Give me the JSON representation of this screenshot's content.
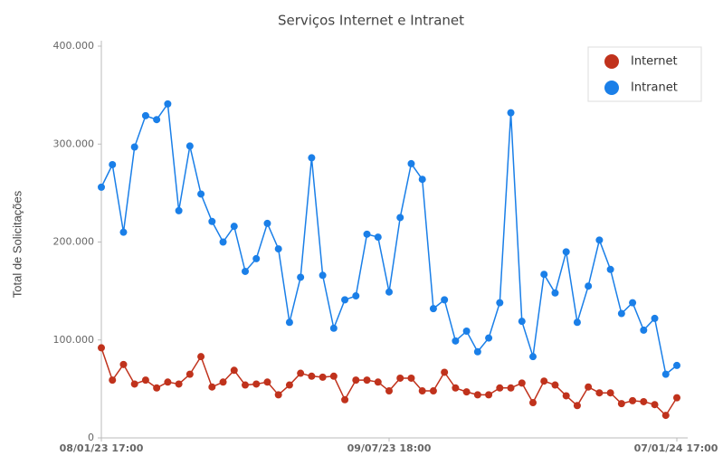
{
  "chart_data": {
    "type": "line",
    "title": "Serviços Internet e Intranet",
    "y_label": "Total de Solicitações",
    "categories": [
      "08/01/23 17:00",
      null,
      null,
      null,
      null,
      null,
      null,
      null,
      null,
      null,
      null,
      null,
      null,
      null,
      null,
      null,
      null,
      null,
      null,
      null,
      null,
      null,
      null,
      null,
      null,
      null,
      "09/07/23 18:00",
      null,
      null,
      null,
      null,
      null,
      null,
      null,
      null,
      null,
      null,
      null,
      null,
      null,
      null,
      null,
      null,
      null,
      null,
      null,
      null,
      null,
      null,
      null,
      null,
      null,
      "07/01/24 17:00"
    ],
    "series": [
      {
        "name": "Internet",
        "color": "#c0321c",
        "values": [
          92000,
          59000,
          75000,
          55000,
          59000,
          51000,
          57000,
          55000,
          65000,
          83000,
          52000,
          57000,
          69000,
          54000,
          55000,
          57000,
          44000,
          54000,
          66000,
          63000,
          62000,
          63000,
          39000,
          59000,
          59000,
          57000,
          48000,
          61000,
          61000,
          48000,
          48000,
          67000,
          51000,
          47000,
          44000,
          44000,
          51000,
          51000,
          56000,
          36000,
          58000,
          54000,
          43000,
          33000,
          52000,
          46000,
          46000,
          35000,
          38000,
          37000,
          34000,
          23000,
          41000
        ]
      },
      {
        "name": "Intranet",
        "color": "#1a7fe8",
        "values": [
          256000,
          279000,
          210000,
          297000,
          329000,
          325000,
          341000,
          232000,
          298000,
          249000,
          221000,
          200000,
          216000,
          170000,
          183000,
          219000,
          193000,
          118000,
          164000,
          286000,
          166000,
          112000,
          141000,
          145000,
          208000,
          205000,
          149000,
          225000,
          280000,
          264000,
          132000,
          141000,
          99000,
          109000,
          88000,
          102000,
          138000,
          332000,
          119000,
          83000,
          167000,
          148000,
          190000,
          118000,
          155000,
          202000,
          172000,
          127000,
          138000,
          110000,
          122000,
          65000,
          74000
        ]
      }
    ],
    "ylim": [
      0,
      400000
    ],
    "yticks": [
      0,
      {
        "value": 100000,
        "label": "100.000"
      },
      {
        "value": 200000,
        "label": "200.000"
      },
      {
        "value": 300000,
        "label": "300.000"
      },
      {
        "value": 400000,
        "label": "400.000"
      }
    ],
    "grid": false,
    "legend": "top-right"
  }
}
